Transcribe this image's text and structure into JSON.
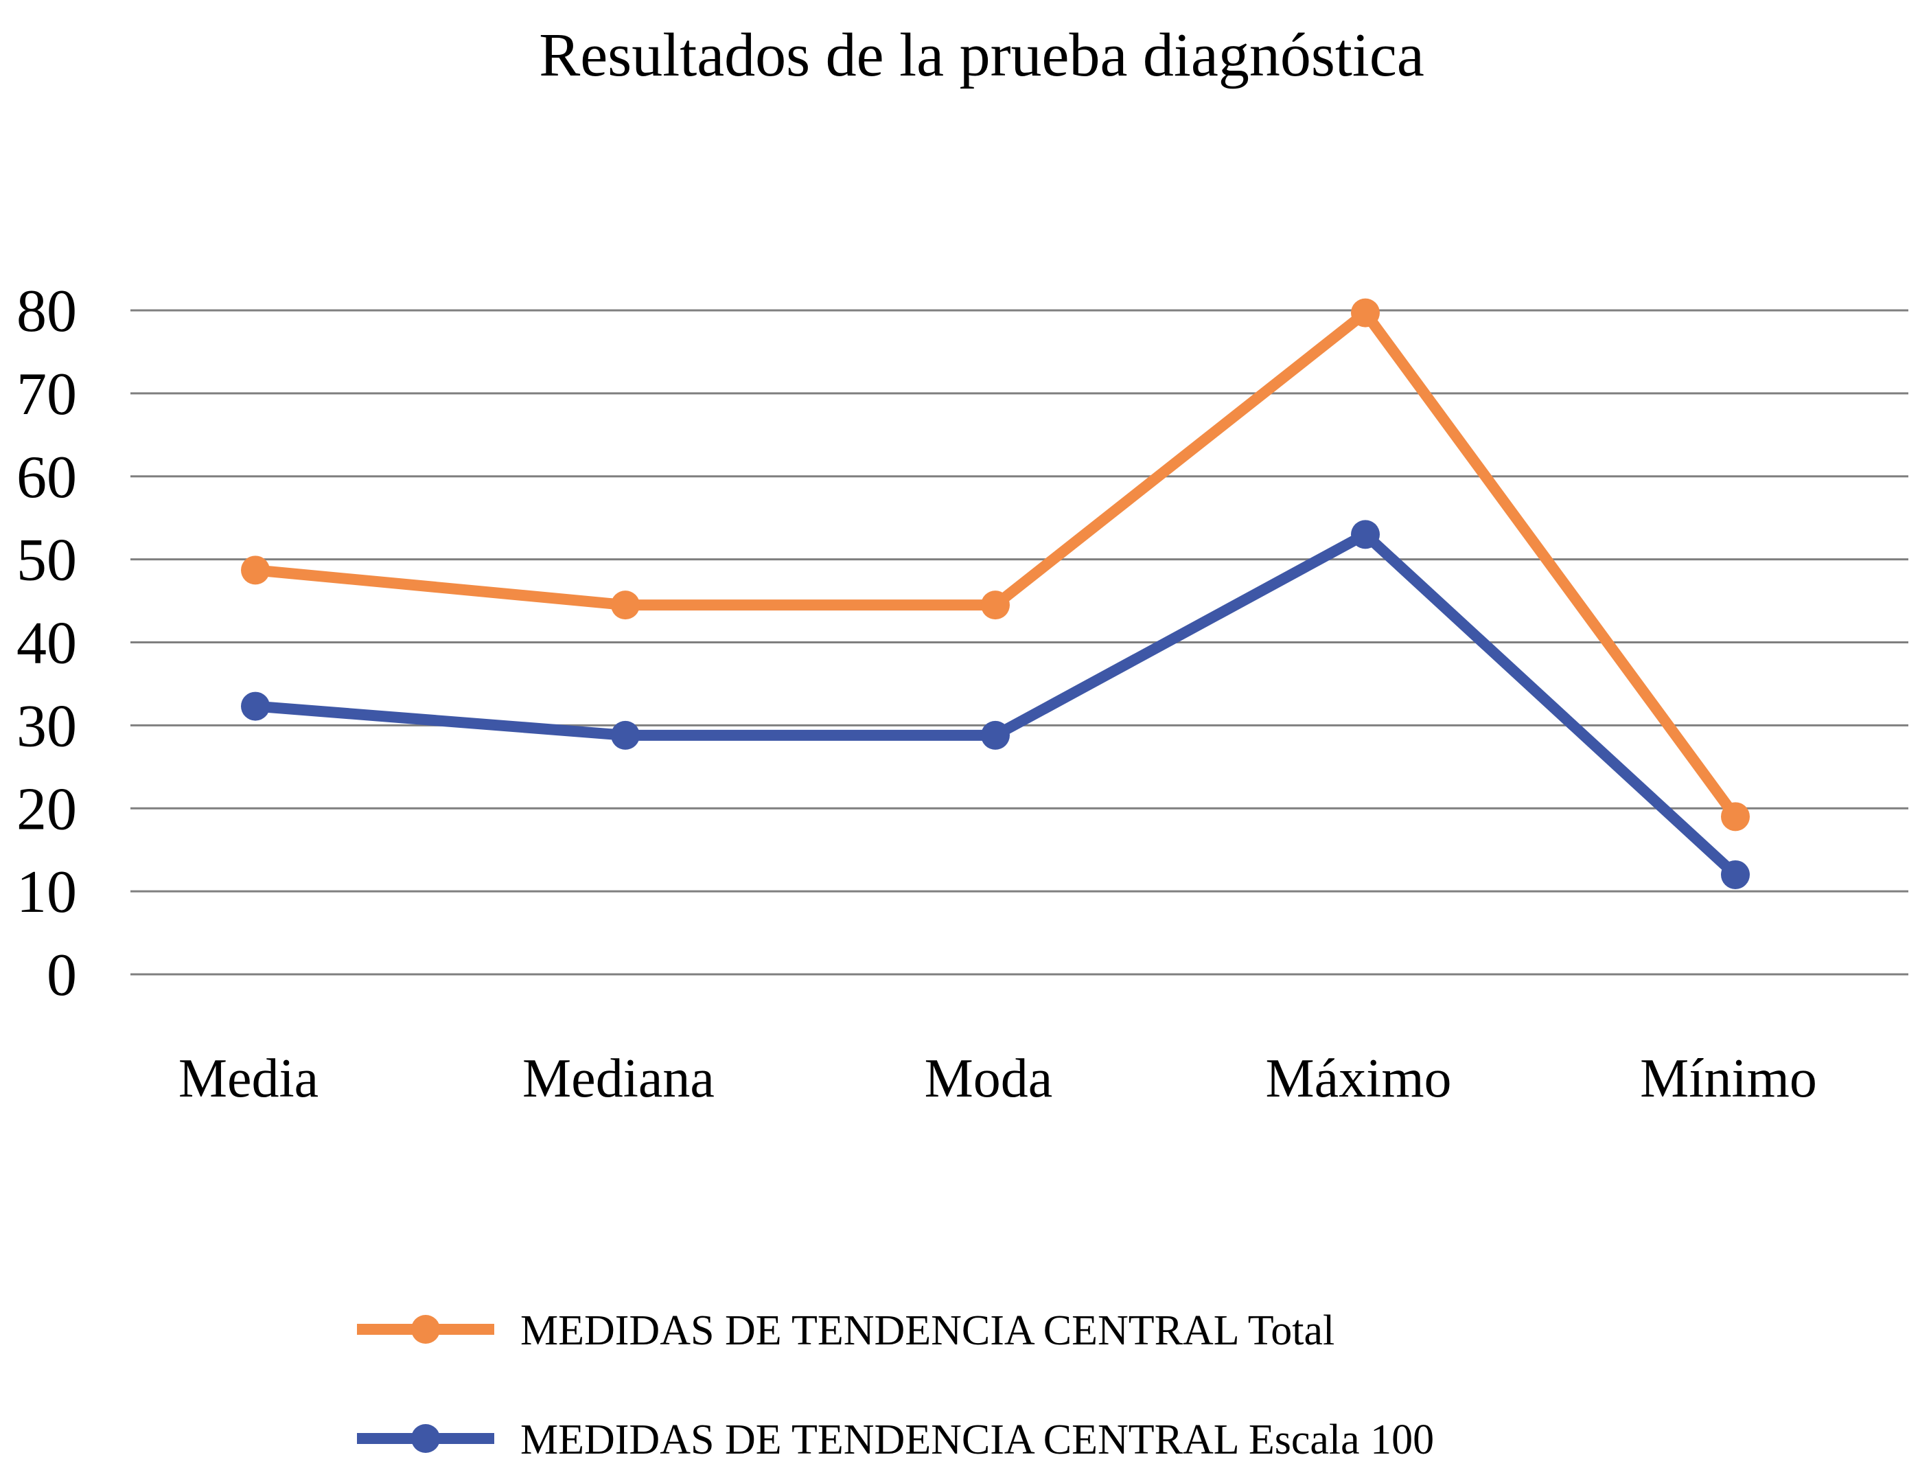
{
  "chart_data": {
    "type": "line",
    "title": "Resultados de la prueba diagnóstica",
    "categories": [
      "Media",
      "Mediana",
      "Moda",
      "Máximo",
      "Mínimo"
    ],
    "ylim": [
      0,
      80
    ],
    "yticks": [
      "0",
      "10",
      "20",
      "30",
      "40",
      "50",
      "60",
      "70",
      "80"
    ],
    "grid": true,
    "legend_position": "bottom",
    "series": [
      {
        "name": "MEDIDAS DE TENDENCIA CENTRAL Total",
        "color": "#F28B45",
        "values": [
          48.7,
          44.5,
          44.5,
          79.7,
          19
        ]
      },
      {
        "name": "MEDIDAS DE TENDENCIA CENTRAL Escala 100",
        "color": "#3E57A6",
        "values": [
          32.3,
          28.8,
          28.8,
          53,
          12
        ]
      }
    ],
    "gridline_color": "#7F7F7F"
  }
}
